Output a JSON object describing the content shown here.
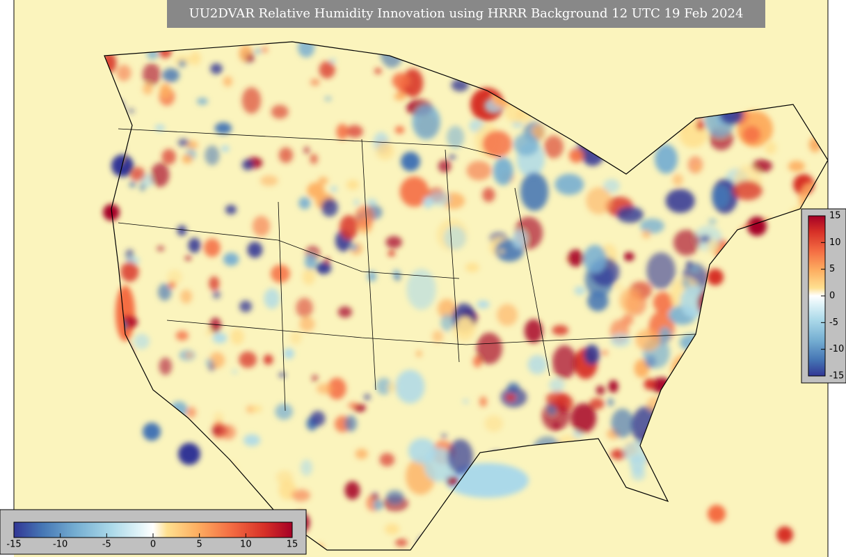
{
  "title": "UU2DVAR Relative Humidity Innovation using HRRR Background 12 UTC 19 Feb 2024",
  "colorbar_vertical": {
    "lim": [
      -15,
      15
    ],
    "ticks": [
      15,
      10,
      5,
      0,
      -5,
      -10,
      -15
    ]
  },
  "colorbar_horizontal": {
    "lim": [
      -15,
      15
    ],
    "ticks": [
      -15,
      -10,
      -5,
      0,
      5,
      10,
      15
    ]
  }
}
